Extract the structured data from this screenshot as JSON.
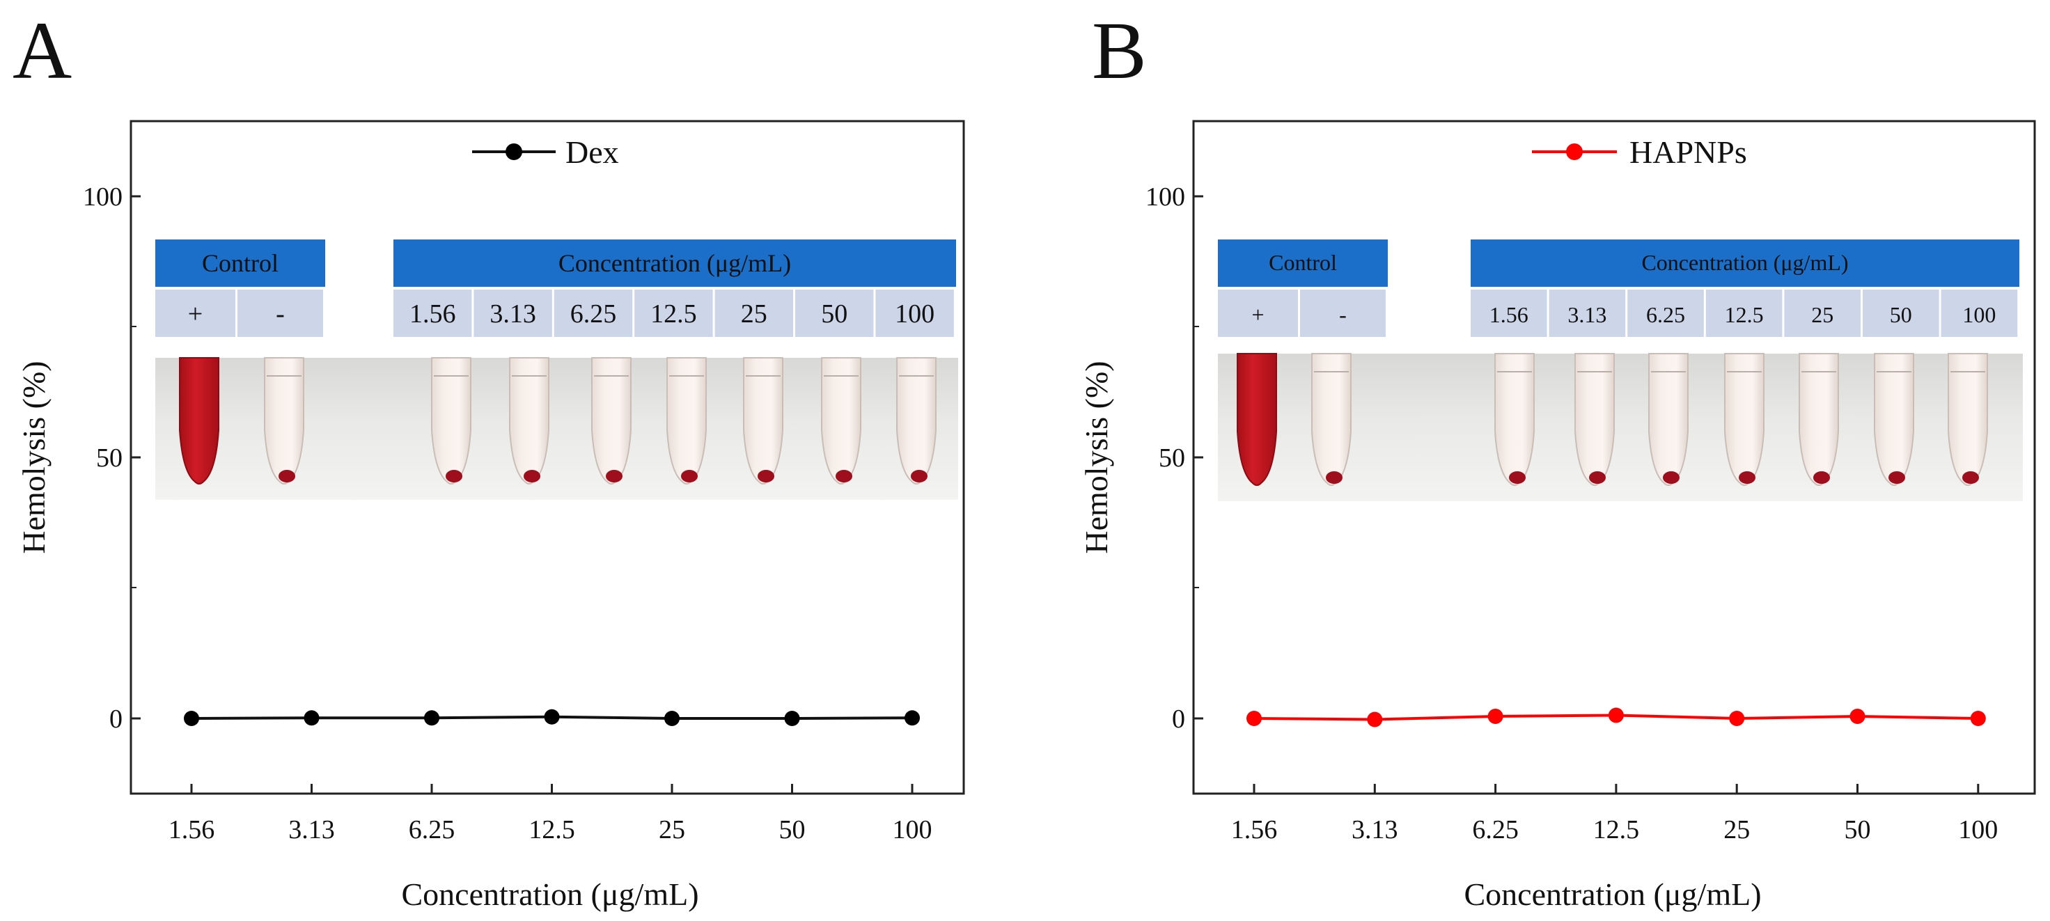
{
  "chart_data": [
    {
      "panel_label": "A",
      "type": "line",
      "categories": [
        "1.56",
        "3.13",
        "6.25",
        "12.5",
        "25",
        "50",
        "100"
      ],
      "series": [
        {
          "name": "Dex",
          "color": "#000000",
          "values": [
            0.0,
            0.1,
            0.1,
            0.3,
            0.0,
            0.0,
            0.1
          ]
        }
      ],
      "xlabel": "Concentration (μg/mL)",
      "ylabel": "Hemolysis (%)",
      "ylim": [
        -15,
        115
      ],
      "yticks": [
        "0",
        "50",
        "100"
      ],
      "legend": "top-center",
      "inset": {
        "control_header": "Control",
        "concentration_header": "Concentration (μg/mL)",
        "control_labels": [
          "+",
          "-"
        ],
        "concentration_labels": [
          "1.56",
          "3.13",
          "6.25",
          "12.5",
          "25",
          "50",
          "100"
        ]
      }
    },
    {
      "panel_label": "B",
      "type": "line",
      "categories": [
        "1.56",
        "3.13",
        "6.25",
        "12.5",
        "25",
        "50",
        "100"
      ],
      "series": [
        {
          "name": "HAPNPs",
          "color": "#ff0000",
          "values": [
            0.0,
            -0.2,
            0.4,
            0.6,
            0.0,
            0.4,
            0.0
          ]
        }
      ],
      "xlabel": "Concentration (μg/mL)",
      "ylabel": "Hemolysis (%)",
      "ylim": [
        -15,
        115
      ],
      "yticks": [
        "0",
        "50",
        "100"
      ],
      "legend": "top-center",
      "inset": {
        "control_header": "Control",
        "concentration_header": "Concentration (μg/mL)",
        "control_labels": [
          "+",
          "-"
        ],
        "concentration_labels": [
          "1.56",
          "3.13",
          "6.25",
          "12.5",
          "25",
          "50",
          "100"
        ]
      }
    }
  ],
  "colors": {
    "header_blue": "#1b6fc8",
    "cell_lavender": "#cdd5e8",
    "blood_red": "#c0141e",
    "pellet_red": "#9e0e1c"
  }
}
